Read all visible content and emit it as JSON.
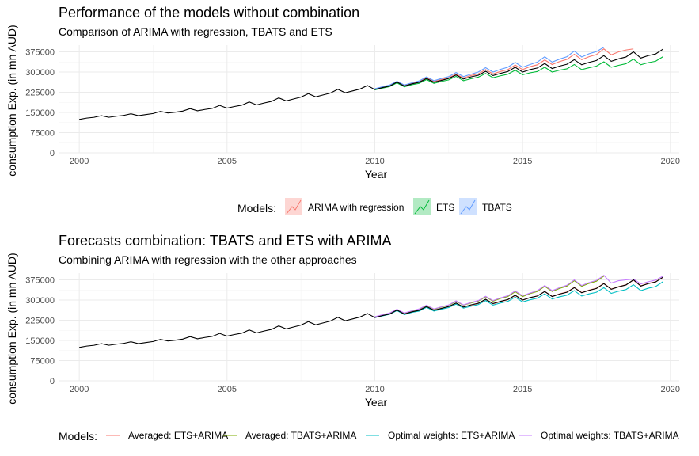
{
  "chart_data": [
    {
      "type": "line",
      "title": "Performance of the models without combination",
      "subtitle": "Comparison of ARIMA with regression, TBATS and ETS",
      "xlabel": "Year",
      "ylabel": "consumption Exp. (in mn AUD)",
      "xlim": [
        1999.3,
        2020.3
      ],
      "ylim": [
        0,
        400000
      ],
      "x_ticks": [
        "2000",
        "2005",
        "2010",
        "2015",
        "2020"
      ],
      "y_ticks": [
        "0",
        "75000",
        "150000",
        "225000",
        "300000",
        "375000"
      ],
      "grid": true,
      "legend_position": "bottom",
      "legend_title": "Models:",
      "legend_items": [
        "ARIMA with regression",
        "ETS",
        "TBATS"
      ],
      "actual": {
        "x": [
          2000.0,
          2000.25,
          2000.5,
          2000.75,
          2001.0,
          2001.25,
          2001.5,
          2001.75,
          2002.0,
          2002.25,
          2002.5,
          2002.75,
          2003.0,
          2003.25,
          2003.5,
          2003.75,
          2004.0,
          2004.25,
          2004.5,
          2004.75,
          2005.0,
          2005.25,
          2005.5,
          2005.75,
          2006.0,
          2006.25,
          2006.5,
          2006.75,
          2007.0,
          2007.25,
          2007.5,
          2007.75,
          2008.0,
          2008.25,
          2008.5,
          2008.75,
          2009.0,
          2009.25,
          2009.5,
          2009.75,
          2010.0,
          2010.25,
          2010.5,
          2010.75,
          2011.0,
          2011.25,
          2011.5,
          2011.75,
          2012.0,
          2012.25,
          2012.5,
          2012.75,
          2013.0,
          2013.25,
          2013.5,
          2013.75,
          2014.0,
          2014.25,
          2014.5,
          2014.75,
          2015.0,
          2015.25,
          2015.5,
          2015.75,
          2016.0,
          2016.25,
          2016.5,
          2016.75,
          2017.0,
          2017.25,
          2017.5,
          2017.75,
          2018.0,
          2018.25,
          2018.5,
          2018.75,
          2019.0,
          2019.25,
          2019.5,
          2019.75
        ],
        "y": [
          124000,
          129000,
          132000,
          138000,
          132000,
          136000,
          139000,
          145000,
          138000,
          142000,
          146000,
          154000,
          148000,
          151000,
          155000,
          164000,
          156000,
          161000,
          165000,
          176000,
          166000,
          172000,
          177000,
          189000,
          178000,
          185000,
          191000,
          204000,
          193000,
          200000,
          207000,
          220000,
          208000,
          215000,
          222000,
          236000,
          223000,
          230000,
          237000,
          250000,
          235000,
          242000,
          248000,
          263000,
          248000,
          256000,
          262000,
          276000,
          262000,
          269000,
          276000,
          289000,
          274000,
          282000,
          288000,
          303000,
          287000,
          295000,
          302000,
          318000,
          300000,
          309000,
          315000,
          332000,
          313000,
          322000,
          329000,
          346000,
          327000,
          336000,
          343000,
          361000,
          340000,
          349000,
          356000,
          375000,
          352000,
          361000,
          367000,
          385000
        ]
      },
      "series": [
        {
          "name": "ARIMA with regression",
          "color": "#F8766D",
          "x": [
            2010.0,
            2010.25,
            2010.5,
            2010.75,
            2011.0,
            2011.25,
            2011.5,
            2011.75,
            2012.0,
            2012.25,
            2012.5,
            2012.75,
            2013.0,
            2013.25,
            2013.5,
            2013.75,
            2014.0,
            2014.25,
            2014.5,
            2014.75,
            2015.0,
            2015.25,
            2015.5,
            2015.75,
            2016.0,
            2016.25,
            2016.5,
            2016.75,
            2017.0,
            2017.25,
            2017.5,
            2017.75,
            2018.0,
            2018.25,
            2018.5,
            2018.75
          ],
          "y": [
            237000,
            244000,
            250000,
            264000,
            250000,
            258000,
            264000,
            278000,
            265000,
            272000,
            279000,
            292000,
            278000,
            287000,
            293000,
            309000,
            293000,
            302000,
            309000,
            326000,
            309000,
            320000,
            327000,
            345000,
            328000,
            339000,
            347000,
            366000,
            346000,
            357000,
            365000,
            386000,
            364000,
            375000,
            382000,
            386000
          ]
        },
        {
          "name": "ETS",
          "color": "#00BA38",
          "x": [
            2010.0,
            2010.25,
            2010.5,
            2010.75,
            2011.0,
            2011.25,
            2011.5,
            2011.75,
            2012.0,
            2012.25,
            2012.5,
            2012.75,
            2013.0,
            2013.25,
            2013.5,
            2013.75,
            2014.0,
            2014.25,
            2014.5,
            2014.75,
            2015.0,
            2015.25,
            2015.5,
            2015.75,
            2016.0,
            2016.25,
            2016.5,
            2016.75,
            2017.0,
            2017.25,
            2017.5,
            2017.75,
            2018.0,
            2018.25,
            2018.5,
            2018.75,
            2019.0,
            2019.25,
            2019.5,
            2019.75
          ],
          "y": [
            234000,
            240000,
            246000,
            260000,
            245000,
            253000,
            258000,
            272000,
            258000,
            265000,
            271000,
            284000,
            268000,
            275000,
            281000,
            295000,
            279000,
            286000,
            292000,
            307000,
            290000,
            297000,
            302000,
            318000,
            300000,
            307000,
            312000,
            328000,
            309000,
            316000,
            322000,
            338000,
            318000,
            325000,
            331000,
            348000,
            327000,
            335000,
            340000,
            357000
          ]
        },
        {
          "name": "TBATS",
          "color": "#619CFF",
          "x": [
            2010.0,
            2010.25,
            2010.5,
            2010.75,
            2011.0,
            2011.25,
            2011.5,
            2011.75,
            2012.0,
            2012.25,
            2012.5,
            2012.75,
            2013.0,
            2013.25,
            2013.5,
            2013.75,
            2014.0,
            2014.25,
            2014.5,
            2014.75,
            2015.0,
            2015.25,
            2015.5,
            2015.75,
            2016.0,
            2016.25,
            2016.5,
            2016.75,
            2017.0,
            2017.25,
            2017.5,
            2017.75
          ],
          "y": [
            238000,
            245000,
            252000,
            266000,
            252000,
            260000,
            267000,
            282000,
            268000,
            276000,
            283000,
            298000,
            283000,
            292000,
            300000,
            316000,
            300000,
            310000,
            318000,
            336000,
            318000,
            328000,
            337000,
            357000,
            337000,
            348000,
            357000,
            378000,
            356000,
            368000,
            376000,
            392000
          ]
        }
      ]
    },
    {
      "type": "line",
      "title": "Forecasts combination: TBATS and ETS with ARIMA",
      "subtitle": "Combining ARIMA with regression with the other approaches",
      "xlabel": "Year",
      "ylabel": "consumption Exp. (in mn AUD)",
      "xlim": [
        1999.3,
        2020.3
      ],
      "ylim": [
        0,
        400000
      ],
      "x_ticks": [
        "2000",
        "2005",
        "2010",
        "2015",
        "2020"
      ],
      "y_ticks": [
        "0",
        "75000",
        "150000",
        "225000",
        "300000",
        "375000"
      ],
      "grid": true,
      "legend_position": "bottom",
      "legend_title": "Models:",
      "legend_items": [
        "Averaged: ETS+ARIMA",
        "Averaged: TBATS+ARIMA",
        "Optimal weights: ETS+ARIMA",
        "Optimal weights: TBATS+ARIMA"
      ],
      "actual": {
        "x": [
          2000.0,
          2000.25,
          2000.5,
          2000.75,
          2001.0,
          2001.25,
          2001.5,
          2001.75,
          2002.0,
          2002.25,
          2002.5,
          2002.75,
          2003.0,
          2003.25,
          2003.5,
          2003.75,
          2004.0,
          2004.25,
          2004.5,
          2004.75,
          2005.0,
          2005.25,
          2005.5,
          2005.75,
          2006.0,
          2006.25,
          2006.5,
          2006.75,
          2007.0,
          2007.25,
          2007.5,
          2007.75,
          2008.0,
          2008.25,
          2008.5,
          2008.75,
          2009.0,
          2009.25,
          2009.5,
          2009.75,
          2010.0,
          2010.25,
          2010.5,
          2010.75,
          2011.0,
          2011.25,
          2011.5,
          2011.75,
          2012.0,
          2012.25,
          2012.5,
          2012.75,
          2013.0,
          2013.25,
          2013.5,
          2013.75,
          2014.0,
          2014.25,
          2014.5,
          2014.75,
          2015.0,
          2015.25,
          2015.5,
          2015.75,
          2016.0,
          2016.25,
          2016.5,
          2016.75,
          2017.0,
          2017.25,
          2017.5,
          2017.75,
          2018.0,
          2018.25,
          2018.5,
          2018.75,
          2019.0,
          2019.25,
          2019.5,
          2019.75
        ],
        "y": [
          124000,
          129000,
          132000,
          138000,
          132000,
          136000,
          139000,
          145000,
          138000,
          142000,
          146000,
          154000,
          148000,
          151000,
          155000,
          164000,
          156000,
          161000,
          165000,
          176000,
          166000,
          172000,
          177000,
          189000,
          178000,
          185000,
          191000,
          204000,
          193000,
          200000,
          207000,
          220000,
          208000,
          215000,
          222000,
          236000,
          223000,
          230000,
          237000,
          250000,
          235000,
          242000,
          248000,
          263000,
          248000,
          256000,
          262000,
          276000,
          262000,
          269000,
          276000,
          289000,
          274000,
          282000,
          288000,
          303000,
          287000,
          295000,
          302000,
          318000,
          300000,
          309000,
          315000,
          332000,
          313000,
          322000,
          329000,
          346000,
          327000,
          336000,
          343000,
          361000,
          340000,
          349000,
          356000,
          375000,
          352000,
          361000,
          367000,
          385000
        ]
      },
      "series": [
        {
          "name": "Averaged: ETS+ARIMA",
          "color": "#F8766D",
          "x": [
            2010.0,
            2010.25,
            2010.5,
            2010.75,
            2011.0,
            2011.25,
            2011.5,
            2011.75,
            2012.0,
            2012.25,
            2012.5,
            2012.75,
            2013.0,
            2013.25,
            2013.5,
            2013.75,
            2014.0,
            2014.25,
            2014.5,
            2014.75,
            2015.0,
            2015.25,
            2015.5,
            2015.75,
            2016.0,
            2016.25,
            2016.5,
            2016.75,
            2017.0,
            2017.25,
            2017.5,
            2017.75,
            2018.0,
            2018.25,
            2018.5,
            2018.75,
            2019.0,
            2019.25,
            2019.5,
            2019.75
          ],
          "y": [
            236000,
            242000,
            248000,
            262000,
            248000,
            256000,
            261000,
            275000,
            262000,
            269000,
            275000,
            288000,
            273000,
            281000,
            287000,
            302000,
            286000,
            294000,
            301000,
            317000,
            300000,
            309000,
            315000,
            332000,
            314000,
            323000,
            330000,
            347000,
            328000,
            337000,
            344000,
            362000,
            341000,
            350000,
            357000,
            374000,
            353000,
            362000,
            368000,
            384000
          ]
        },
        {
          "name": "Averaged: TBATS+ARIMA",
          "color": "#7CAE00",
          "x": [
            2010.0,
            2010.25,
            2010.5,
            2010.75,
            2011.0,
            2011.25,
            2011.5,
            2011.75,
            2012.0,
            2012.25,
            2012.5,
            2012.75,
            2013.0,
            2013.25,
            2013.5,
            2013.75,
            2014.0,
            2014.25,
            2014.5,
            2014.75,
            2015.0,
            2015.25,
            2015.5,
            2015.75,
            2016.0,
            2016.25,
            2016.5,
            2016.75,
            2017.0,
            2017.25,
            2017.5,
            2017.75
          ],
          "y": [
            237000,
            244000,
            251000,
            265000,
            251000,
            259000,
            266000,
            280000,
            266000,
            274000,
            281000,
            295000,
            281000,
            289000,
            296000,
            312000,
            296000,
            306000,
            313000,
            331000,
            313000,
            324000,
            332000,
            351000,
            332000,
            343000,
            352000,
            372000,
            351000,
            362000,
            370000,
            389000
          ]
        },
        {
          "name": "Optimal weights: ETS+ARIMA",
          "color": "#00BFC4",
          "x": [
            2010.0,
            2010.25,
            2010.5,
            2010.75,
            2011.0,
            2011.25,
            2011.5,
            2011.75,
            2012.0,
            2012.25,
            2012.5,
            2012.75,
            2013.0,
            2013.25,
            2013.5,
            2013.75,
            2014.0,
            2014.25,
            2014.5,
            2014.75,
            2015.0,
            2015.25,
            2015.5,
            2015.75,
            2016.0,
            2016.25,
            2016.5,
            2016.75,
            2017.0,
            2017.25,
            2017.5,
            2017.75,
            2018.0,
            2018.25,
            2018.5,
            2018.75,
            2019.0,
            2019.25,
            2019.5,
            2019.75
          ],
          "y": [
            235000,
            241000,
            247000,
            261000,
            246000,
            254000,
            259000,
            273000,
            259000,
            266000,
            272000,
            285000,
            270000,
            277000,
            283000,
            298000,
            281000,
            289000,
            295000,
            311000,
            293000,
            301000,
            307000,
            323000,
            304000,
            312000,
            318000,
            335000,
            315000,
            323000,
            329000,
            346000,
            325000,
            333000,
            339000,
            357000,
            335000,
            344000,
            350000,
            368000
          ]
        },
        {
          "name": "Optimal weights: TBATS+ARIMA",
          "color": "#C77CFF",
          "x": [
            2010.0,
            2010.25,
            2010.5,
            2010.75,
            2011.0,
            2011.25,
            2011.5,
            2011.75,
            2012.0,
            2012.25,
            2012.5,
            2012.75,
            2013.0,
            2013.25,
            2013.5,
            2013.75,
            2014.0,
            2014.25,
            2014.5,
            2014.75,
            2015.0,
            2015.25,
            2015.5,
            2015.75,
            2016.0,
            2016.25,
            2016.5,
            2016.75,
            2017.0,
            2017.25,
            2017.5,
            2017.75,
            2018.0,
            2018.25,
            2018.5,
            2018.75,
            2019.0,
            2019.25,
            2019.5,
            2019.75
          ],
          "y": [
            238000,
            245000,
            252000,
            266000,
            252000,
            260000,
            267000,
            281000,
            267000,
            275000,
            282000,
            297000,
            282000,
            291000,
            298000,
            314000,
            298000,
            308000,
            316000,
            334000,
            316000,
            326000,
            335000,
            354000,
            335000,
            346000,
            355000,
            375000,
            354000,
            365000,
            373000,
            392000,
            363000,
            372000,
            375000,
            378000,
            360000,
            368000,
            374000,
            389000
          ]
        }
      ]
    }
  ]
}
